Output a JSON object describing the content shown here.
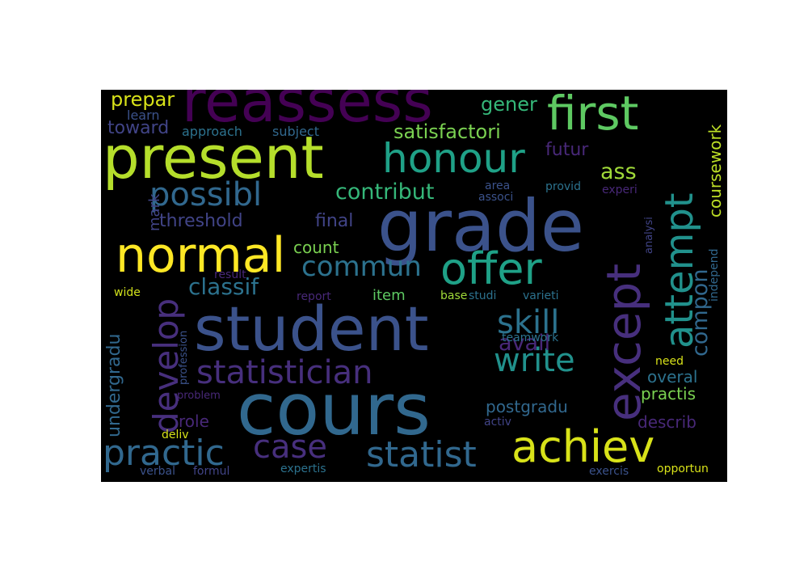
{
  "palette": {
    "background": "#000000",
    "page": "#ffffff",
    "deep_purple": "#440154",
    "indigo": "#3b528b",
    "slate_blue": "#472f7d",
    "teal_blue": "#31688e",
    "teal": "#21918c",
    "sea_green": "#1fa187",
    "green": "#5ec962",
    "lime": "#b5de2b",
    "yellow": "#fde725"
  },
  "words": [
    {
      "text": "reassess",
      "color": "#440154"
    },
    {
      "text": "first",
      "color": "#5ec962"
    },
    {
      "text": "present",
      "color": "#b5de2b"
    },
    {
      "text": "honour",
      "color": "#1fa187"
    },
    {
      "text": "grade",
      "color": "#3b528b"
    },
    {
      "text": "except",
      "color": "#472f7d"
    },
    {
      "text": "attempt",
      "color": "#21918c"
    },
    {
      "text": "normal",
      "color": "#fde725"
    },
    {
      "text": "offer",
      "color": "#1fa187"
    },
    {
      "text": "student",
      "color": "#3b528b"
    },
    {
      "text": "cours",
      "color": "#31688e"
    },
    {
      "text": "achiev",
      "color": "#d8e219"
    },
    {
      "text": "statistician",
      "color": "#472f7d"
    },
    {
      "text": "statist",
      "color": "#31688e"
    },
    {
      "text": "practic",
      "color": "#31688e"
    },
    {
      "text": "develop",
      "color": "#472f7d"
    },
    {
      "text": "possibl",
      "color": "#31688e"
    },
    {
      "text": "commun",
      "color": "#2c728e"
    },
    {
      "text": "skill",
      "color": "#2c728e"
    },
    {
      "text": "write",
      "color": "#21918c"
    },
    {
      "text": "case",
      "color": "#472f7d"
    },
    {
      "text": "classif",
      "color": "#2c728e"
    },
    {
      "text": "contribut",
      "color": "#35b779"
    },
    {
      "text": "satisfactori",
      "color": "#7ad151"
    },
    {
      "text": "prepar",
      "color": "#d8e219"
    },
    {
      "text": "gener",
      "color": "#35b779"
    },
    {
      "text": "toward",
      "color": "#414487"
    },
    {
      "text": "approach",
      "color": "#2c728e"
    },
    {
      "text": "subject",
      "color": "#31688e"
    },
    {
      "text": "learn",
      "color": "#3b528b"
    },
    {
      "text": "futur",
      "color": "#482878"
    },
    {
      "text": "ass",
      "color": "#a0da39"
    },
    {
      "text": "coursework",
      "color": "#bddf26"
    },
    {
      "text": "compon",
      "color": "#31688e"
    },
    {
      "text": "avail",
      "color": "#482878"
    },
    {
      "text": "threshold",
      "color": "#414487"
    },
    {
      "text": "final",
      "color": "#414487"
    },
    {
      "text": "count",
      "color": "#7ad151"
    },
    {
      "text": "mark",
      "color": "#414487"
    },
    {
      "text": "area",
      "color": "#3b528b"
    },
    {
      "text": "associ",
      "color": "#3b528b"
    },
    {
      "text": "provid",
      "color": "#2c728e"
    },
    {
      "text": "experi",
      "color": "#482878"
    },
    {
      "text": "analysi",
      "color": "#414487"
    },
    {
      "text": "independ",
      "color": "#31688e"
    },
    {
      "text": "result",
      "color": "#482878"
    },
    {
      "text": "wide",
      "color": "#d2e21b"
    },
    {
      "text": "report",
      "color": "#482878"
    },
    {
      "text": "item",
      "color": "#5ec962"
    },
    {
      "text": "base",
      "color": "#a0da39"
    },
    {
      "text": "studi",
      "color": "#2c728e"
    },
    {
      "text": "varieti",
      "color": "#2c728e"
    },
    {
      "text": "undergradu",
      "color": "#31688e"
    },
    {
      "text": "profession",
      "color": "#3b528b"
    },
    {
      "text": "teamwork",
      "color": "#2c728e"
    },
    {
      "text": "need",
      "color": "#d8e219"
    },
    {
      "text": "overal",
      "color": "#2c728e"
    },
    {
      "text": "practis",
      "color": "#7ad151"
    },
    {
      "text": "problem",
      "color": "#482878"
    },
    {
      "text": "postgradu",
      "color": "#31688e"
    },
    {
      "text": "role",
      "color": "#482878"
    },
    {
      "text": "describ",
      "color": "#482878"
    },
    {
      "text": "activ",
      "color": "#414487"
    },
    {
      "text": "deliv",
      "color": "#d8e219"
    },
    {
      "text": "verbal",
      "color": "#3b528b"
    },
    {
      "text": "formul",
      "color": "#414487"
    },
    {
      "text": "expertis",
      "color": "#2c728e"
    },
    {
      "text": "exercis",
      "color": "#3b528b"
    },
    {
      "text": "opportun",
      "color": "#d8e219"
    }
  ]
}
